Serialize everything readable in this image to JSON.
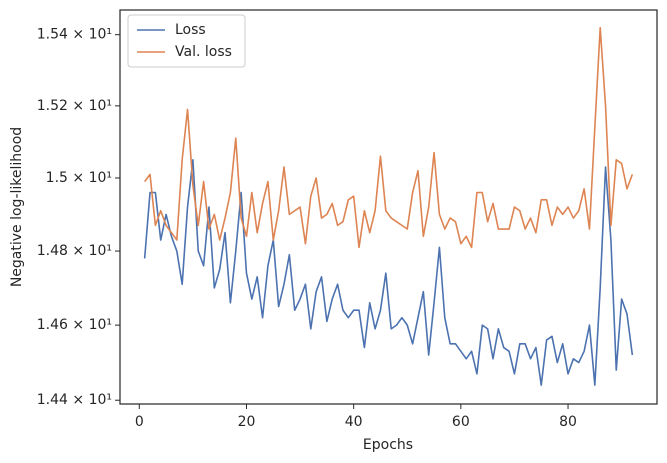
{
  "chart_data": {
    "type": "line",
    "xlabel": "Epochs",
    "ylabel": "Negative log-likelihood",
    "x": [
      1,
      2,
      3,
      4,
      5,
      6,
      7,
      8,
      9,
      10,
      11,
      12,
      13,
      14,
      15,
      16,
      17,
      18,
      19,
      20,
      21,
      22,
      23,
      24,
      25,
      26,
      27,
      28,
      29,
      30,
      31,
      32,
      33,
      34,
      35,
      36,
      37,
      38,
      39,
      40,
      41,
      42,
      43,
      44,
      45,
      46,
      47,
      48,
      49,
      50,
      51,
      52,
      53,
      54,
      55,
      56,
      57,
      58,
      59,
      60,
      61,
      62,
      63,
      64,
      65,
      66,
      67,
      68,
      69,
      70,
      71,
      72,
      73,
      74,
      75,
      76,
      77,
      78,
      79,
      80,
      81,
      82,
      83,
      84,
      85,
      86,
      87,
      88,
      89,
      90,
      91,
      92
    ],
    "series": [
      {
        "name": "Loss",
        "color": "#4c72b0",
        "values": [
          14.78,
          14.96,
          14.96,
          14.83,
          14.9,
          14.84,
          14.8,
          14.71,
          14.92,
          15.05,
          14.8,
          14.76,
          14.92,
          14.7,
          14.75,
          14.85,
          14.66,
          14.8,
          14.96,
          14.74,
          14.67,
          14.73,
          14.62,
          14.76,
          14.83,
          14.65,
          14.71,
          14.79,
          14.64,
          14.67,
          14.71,
          14.59,
          14.69,
          14.73,
          14.61,
          14.67,
          14.71,
          14.64,
          14.62,
          14.64,
          14.64,
          14.54,
          14.66,
          14.59,
          14.64,
          14.74,
          14.59,
          14.6,
          14.62,
          14.6,
          14.55,
          14.62,
          14.69,
          14.52,
          14.66,
          14.81,
          14.62,
          14.55,
          14.55,
          14.53,
          14.51,
          14.53,
          14.47,
          14.6,
          14.59,
          14.51,
          14.59,
          14.54,
          14.53,
          14.47,
          14.55,
          14.55,
          14.51,
          14.54,
          14.44,
          14.56,
          14.57,
          14.5,
          14.55,
          14.47,
          14.51,
          14.5,
          14.53,
          14.6,
          14.44,
          14.7,
          15.03,
          14.83,
          14.48,
          14.67,
          14.63,
          14.52
        ]
      },
      {
        "name": "Val. loss",
        "color": "#dd8452",
        "values": [
          14.99,
          15.01,
          14.87,
          14.91,
          14.87,
          14.85,
          14.83,
          15.05,
          15.19,
          14.98,
          14.87,
          14.99,
          14.86,
          14.9,
          14.83,
          14.89,
          14.96,
          15.11,
          14.89,
          14.84,
          14.96,
          14.85,
          14.93,
          14.99,
          14.83,
          14.91,
          15.03,
          14.9,
          14.91,
          14.92,
          14.82,
          14.95,
          15.0,
          14.89,
          14.9,
          14.93,
          14.87,
          14.88,
          14.94,
          14.95,
          14.81,
          14.91,
          14.85,
          14.91,
          15.06,
          14.91,
          14.89,
          14.88,
          14.87,
          14.86,
          14.96,
          15.02,
          14.84,
          14.92,
          15.07,
          14.9,
          14.86,
          14.89,
          14.88,
          14.82,
          14.84,
          14.81,
          14.96,
          14.96,
          14.88,
          14.93,
          14.86,
          14.86,
          14.86,
          14.92,
          14.91,
          14.86,
          14.89,
          14.85,
          14.94,
          14.94,
          14.87,
          14.92,
          14.9,
          14.92,
          14.89,
          14.91,
          14.97,
          14.86,
          15.14,
          15.42,
          15.2,
          14.87,
          15.05,
          15.04,
          14.97,
          15.01
        ]
      }
    ],
    "xlim": [
      -3.6,
      96.6
    ],
    "xticks": [
      0,
      20,
      40,
      60,
      80
    ],
    "ylim": [
      14.39,
      15.47
    ],
    "ylog": true,
    "yticks": [
      {
        "value": 14.4,
        "label": "1.44 × 10¹"
      },
      {
        "value": 14.6,
        "label": "1.46 × 10¹"
      },
      {
        "value": 14.8,
        "label": "1.48 × 10¹"
      },
      {
        "value": 15.0,
        "label": "1.5 × 10¹"
      },
      {
        "value": 15.2,
        "label": "1.52 × 10¹"
      },
      {
        "value": 15.4,
        "label": "1.54 × 10¹"
      }
    ],
    "legend": "upper left",
    "grid": false
  }
}
